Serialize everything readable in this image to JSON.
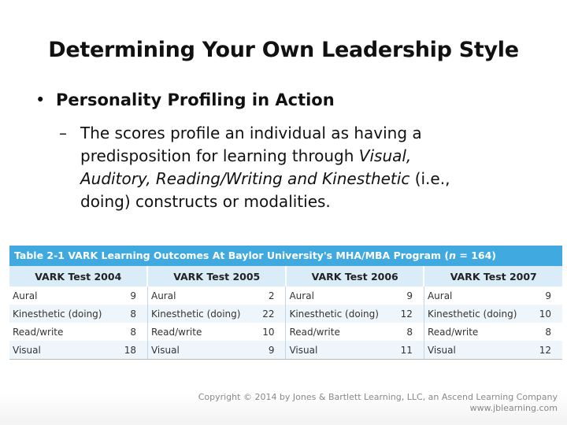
{
  "slide": {
    "title": "Determining Your Own Leadership Style",
    "bullet": "Personality Profiling in Action",
    "sub_dash": "–",
    "sub_line1_a": "The scores profile an individual as having a",
    "sub_line2_a": "predisposition for learning through ",
    "sub_line2_b": "Visual,",
    "sub_line3_a": "Auditory, Reading/Writing and Kinesthetic",
    "sub_line3_b": " (i.e.,",
    "sub_line4": "doing) constructs or modalities."
  },
  "table": {
    "caption_a": "Table 2-1 VARK Learning Outcomes At Baylor University's MHA/MBA Program (",
    "caption_n": "n",
    "caption_b": " = 164)",
    "headers": [
      "VARK Test 2004",
      "VARK Test 2005",
      "VARK Test 2006",
      "VARK Test 2007"
    ],
    "rows": [
      [
        [
          "Aural",
          "9"
        ],
        [
          "Aural",
          "2"
        ],
        [
          "Aural",
          "9"
        ],
        [
          "Aural",
          "9"
        ]
      ],
      [
        [
          "Kinesthetic (doing)",
          "8"
        ],
        [
          "Kinesthetic (doing)",
          "22"
        ],
        [
          "Kinesthetic (doing)",
          "12"
        ],
        [
          "Kinesthetic (doing)",
          "10"
        ]
      ],
      [
        [
          "Read/write",
          "8"
        ],
        [
          "Read/write",
          "10"
        ],
        [
          "Read/write",
          "8"
        ],
        [
          "Read/write",
          "8"
        ]
      ],
      [
        [
          "Visual",
          "18"
        ],
        [
          "Visual",
          "9"
        ],
        [
          "Visual",
          "11"
        ],
        [
          "Visual",
          "12"
        ]
      ]
    ]
  },
  "footer": {
    "copyright": "Copyright © 2014 by Jones & Bartlett Learning, LLC, an Ascend Learning Company",
    "website": "www.jblearning.com"
  },
  "colors": {
    "caption_bg": "#3fa9e0",
    "header_bg": "#d9ecf8",
    "stripe_bg": "#eef6fc"
  }
}
